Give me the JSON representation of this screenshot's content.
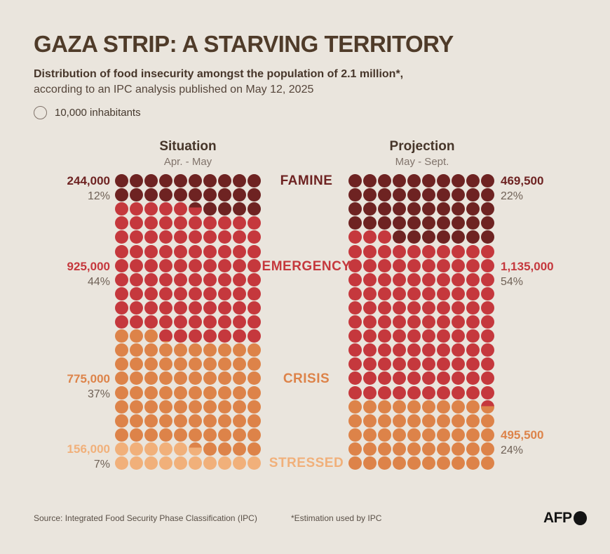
{
  "header": {
    "title": "GAZA STRIP: A STARVING TERRITORY",
    "subtitle_bold": "Distribution of food insecurity amongst the population of 2.1 million*,",
    "subtitle_regular": "according to an IPC analysis published on May 12, 2025"
  },
  "legend": {
    "label": "10,000 inhabitants"
  },
  "categories": [
    {
      "label": "FAMINE",
      "color": "#6e2322"
    },
    {
      "label": "EMERGENCY",
      "color": "#c5383d"
    },
    {
      "label": "CRISIS",
      "color": "#dd8349"
    },
    {
      "label": "STRESSED",
      "color": "#f1b07a"
    }
  ],
  "chart_data": {
    "type": "waffle",
    "unit_per_dot": 10000,
    "columns": 10,
    "rows": 21,
    "total_population": "2.1 million",
    "charts": [
      {
        "name": "Situation",
        "period": "Apr. - May",
        "segments": [
          {
            "category": "FAMINE",
            "value_label": "244,000",
            "people": 244000,
            "percent": "12%",
            "dots": 24.4,
            "color": "#6e2322"
          },
          {
            "category": "EMERGENCY",
            "value_label": "925,000",
            "people": 925000,
            "percent": "44%",
            "dots": 92.5,
            "color": "#c5383d"
          },
          {
            "category": "CRISIS",
            "value_label": "775,000",
            "people": 775000,
            "percent": "37%",
            "dots": 77.5,
            "color": "#dd8349"
          },
          {
            "category": "STRESSED",
            "value_label": "156,000",
            "people": 156000,
            "percent": "7%",
            "dots": 15.6,
            "color": "#f1b07a"
          }
        ]
      },
      {
        "name": "Projection",
        "period": "May - Sept.",
        "segments": [
          {
            "category": "FAMINE",
            "value_label": "469,500",
            "people": 469500,
            "percent": "22%",
            "dots": 46.95,
            "color": "#6e2322"
          },
          {
            "category": "EMERGENCY",
            "value_label": "1,135,000",
            "people": 1135000,
            "percent": "54%",
            "dots": 113.5,
            "color": "#c5383d"
          },
          {
            "category": "CRISIS/STRESSED",
            "value_label": "495,500",
            "people": 495500,
            "percent": "24%",
            "dots": 49.55,
            "color": "#dd8349"
          }
        ]
      }
    ]
  },
  "footer": {
    "source": "Source: Integrated Food Security Phase Classification (IPC)",
    "note": "*Estimation used by IPC",
    "logo": "AFP"
  }
}
